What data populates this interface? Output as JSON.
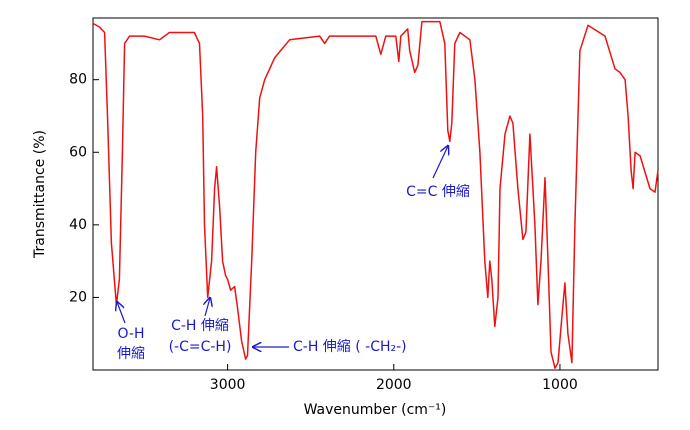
{
  "chart_data": {
    "type": "line",
    "xlabel": "Wavenumber (cm⁻¹)",
    "ylabel": "Transmittance (%)",
    "color": "#ee1111",
    "xlim": [
      3810,
      410
    ],
    "xticks": [
      3000,
      2000,
      1000
    ],
    "ylim": [
      0,
      97
    ],
    "yticks": [
      20,
      40,
      60,
      80
    ],
    "x": [
      3810,
      3770,
      3740,
      3723,
      3699,
      3669,
      3651,
      3633,
      3620,
      3590,
      3500,
      3410,
      3350,
      3200,
      3169,
      3150,
      3139,
      3120,
      3096,
      3078,
      3066,
      3048,
      3030,
      3012,
      3000,
      2982,
      2958,
      2940,
      2916,
      2892,
      2880,
      2855,
      2831,
      2807,
      2777,
      2717,
      2627,
      2446,
      2416,
      2386,
      2108,
      2078,
      2048,
      1988,
      1970,
      1958,
      1916,
      1904,
      1874,
      1855,
      1831,
      1723,
      1693,
      1675,
      1663,
      1651,
      1633,
      1602,
      1542,
      1512,
      1482,
      1452,
      1434,
      1422,
      1410,
      1392,
      1373,
      1361,
      1331,
      1301,
      1283,
      1253,
      1223,
      1205,
      1181,
      1151,
      1133,
      1114,
      1090,
      1072,
      1054,
      1030,
      1012,
      988,
      970,
      952,
      928,
      910,
      880,
      831,
      729,
      669,
      639,
      608,
      590,
      572,
      560,
      548,
      518,
      458,
      428,
      410
    ],
    "values": [
      95.5,
      94.5,
      93,
      70,
      35,
      18,
      25,
      60,
      90,
      92,
      92,
      91,
      93,
      93,
      90,
      70,
      40,
      20,
      30,
      50,
      56,
      45,
      30,
      26,
      25,
      22,
      23,
      17,
      8,
      3,
      4,
      30,
      60,
      75,
      80,
      86,
      91,
      92,
      90,
      92,
      92,
      87,
      92,
      92,
      85,
      92,
      94,
      88,
      82,
      84,
      96,
      96,
      90,
      66,
      63,
      68,
      90,
      93,
      91,
      80,
      60,
      30,
      20,
      30,
      25,
      12,
      20,
      50,
      65,
      70,
      68,
      50,
      36,
      38,
      65,
      40,
      18,
      30,
      53,
      30,
      5,
      0.5,
      2,
      15,
      24,
      10,
      2,
      40,
      88,
      95,
      92,
      83,
      82,
      80,
      70,
      55,
      50,
      60,
      59,
      50,
      49,
      55
    ],
    "annotations": [
      "O-H",
      "伸縮",
      "C-H 伸縮",
      "(-C=C-H)",
      "C-H 伸縮 ( -CH₂-)",
      "C=C 伸縮"
    ]
  }
}
